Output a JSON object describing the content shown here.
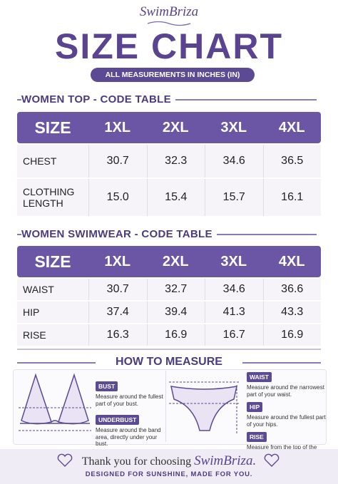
{
  "brand": "SwimBriza",
  "title": "SIZE CHART",
  "subtitle": "ALL MEASUREMENTS IN INCHES (IN)",
  "tables": [
    {
      "title": "WOMEN TOP - CODE TABLE",
      "header": [
        "SIZE",
        "1XL",
        "2XL",
        "3XL",
        "4XL"
      ],
      "rows": [
        [
          "CHEST",
          "30.7",
          "32.3",
          "34.6",
          "36.5"
        ],
        [
          "CLOTHING LENGTH",
          "15.0",
          "15.4",
          "15.7",
          "16.1"
        ]
      ]
    },
    {
      "title": "WOMEN SWIMWEAR - CODE TABLE",
      "header": [
        "SIZE",
        "1XL",
        "2XL",
        "3XL",
        "4XL"
      ],
      "rows": [
        [
          "WAIST",
          "30.7",
          "32.7",
          "34.6",
          "36.6"
        ],
        [
          "HIP",
          "37.4",
          "39.4",
          "41.3",
          "43.3"
        ],
        [
          "RISE",
          "16.3",
          "16.9",
          "16.7",
          "16.9"
        ]
      ]
    }
  ],
  "how_to": {
    "title": "HOW TO MEASURE",
    "top": [
      {
        "label": "BUST",
        "text": "Measure around the fullest part of your bust."
      },
      {
        "label": "UNDERBUST",
        "text": "Measure around the band area, directly under your bust."
      }
    ],
    "bottom": [
      {
        "label": "WAIST",
        "text": "Measure around the narrowest part of your waist."
      },
      {
        "label": "HIP",
        "text": "Measure around the fullest part of your hips."
      },
      {
        "label": "RISE",
        "text": "Measure from the top of the waistband to the crotch seam."
      }
    ]
  },
  "footer": {
    "thanks": "Thank you for choosing",
    "brand": "SwimBriza.",
    "tagline": "DESIGNED FOR SUNSHINE, MADE FOR YOU."
  }
}
